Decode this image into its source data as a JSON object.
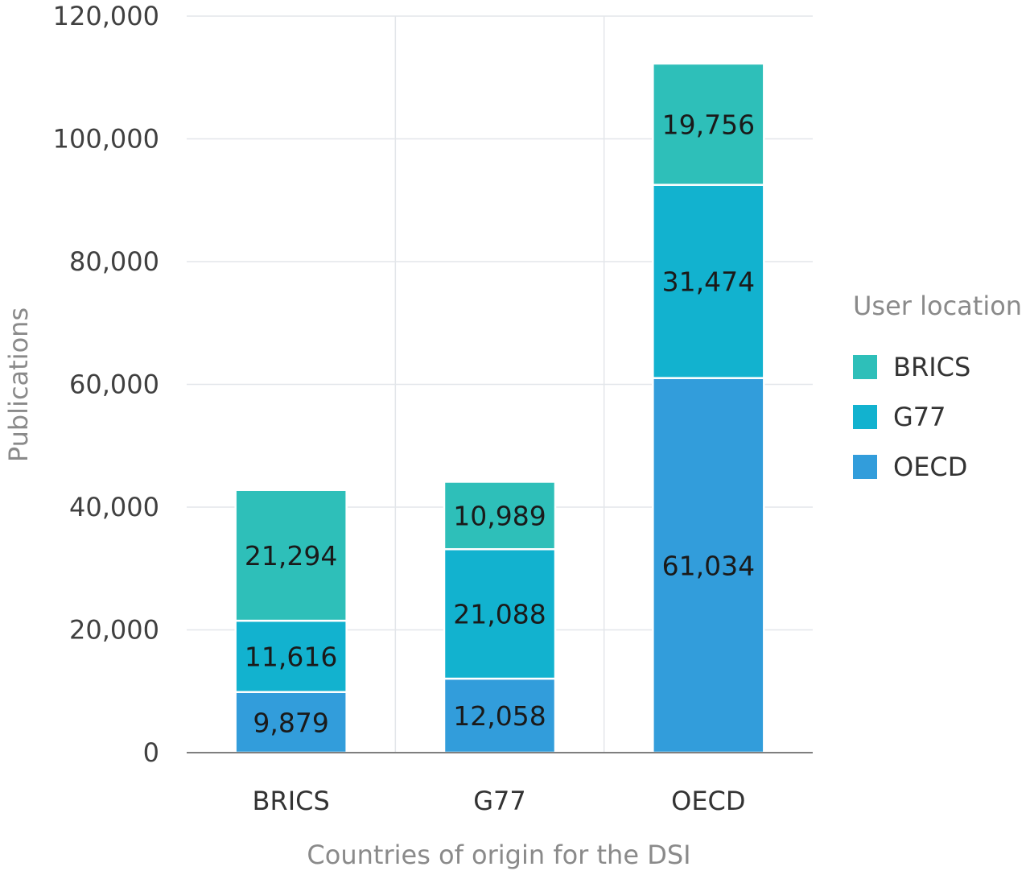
{
  "chart_data": {
    "type": "bar",
    "stacked": true,
    "categories": [
      "BRICS",
      "G77",
      "OECD"
    ],
    "series": [
      {
        "name": "OECD",
        "values": [
          9879,
          12058,
          61034
        ],
        "color": "#329ddb"
      },
      {
        "name": "G77",
        "values": [
          11616,
          21088,
          31474
        ],
        "color": "#12b2cf"
      },
      {
        "name": "BRICS",
        "values": [
          21294,
          10989,
          19756
        ],
        "color": "#2ebfb9"
      }
    ],
    "data_labels": [
      [
        "9,879",
        "12,058",
        "61,034"
      ],
      [
        "11,616",
        "21,088",
        "31,474"
      ],
      [
        "21,294",
        "10,989",
        "19,756"
      ]
    ],
    "xlabel": "Countries of origin for the DSI",
    "ylabel": "Publications",
    "ylim": [
      0,
      120000
    ],
    "yticks": [
      0,
      20000,
      40000,
      60000,
      80000,
      100000,
      120000
    ],
    "ytick_labels": [
      "0",
      "20,000",
      "40,000",
      "60,000",
      "80,000",
      "100,000",
      "120,000"
    ],
    "grid": true,
    "legend": {
      "title": "User location",
      "placement": "right",
      "entries": [
        {
          "label": "BRICS",
          "color": "#2ebfb9"
        },
        {
          "label": "G77",
          "color": "#12b2cf"
        },
        {
          "label": "OECD",
          "color": "#329ddb"
        }
      ]
    }
  }
}
